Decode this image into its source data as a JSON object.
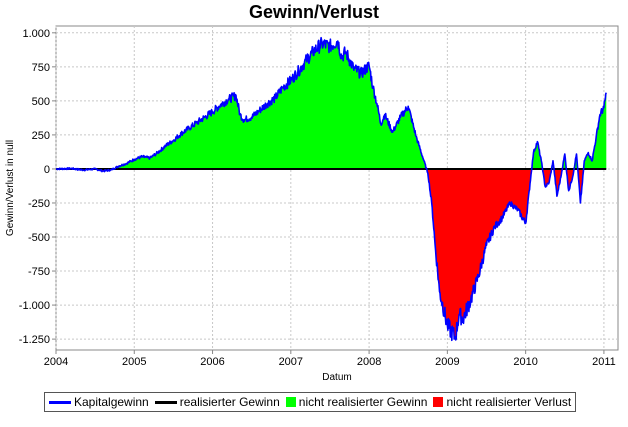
{
  "chart_data": {
    "type": "area",
    "title": "Gewinn/Verlust",
    "xlabel": "Datum",
    "ylabel": "Gewinn/Verlust in null",
    "xlim": [
      2004.0,
      2011.18
    ],
    "ylim": [
      -1330,
      1050
    ],
    "x_ticks": [
      2004,
      2005,
      2006,
      2007,
      2008,
      2009,
      2010,
      2011
    ],
    "x_tick_labels": [
      "2004",
      "2005",
      "2006",
      "2007",
      "2008",
      "2009",
      "2010",
      "2011"
    ],
    "y_ticks": [
      1000,
      750,
      500,
      250,
      0,
      -250,
      -500,
      -750,
      -1000,
      -1250
    ],
    "y_tick_labels": [
      "1.000",
      "750",
      "500",
      "250",
      "0",
      "-250",
      "-500",
      "-750",
      "-1.000",
      "-1.250"
    ],
    "grid": true,
    "legend_position": "bottom-left",
    "series": [
      {
        "name": "Kapitalgewinn",
        "color": "#0000ff",
        "x": [
          2004.0,
          2004.2,
          2004.35,
          2004.5,
          2004.6,
          2004.7,
          2004.8,
          2004.9,
          2005.0,
          2005.1,
          2005.2,
          2005.3,
          2005.4,
          2005.5,
          2005.6,
          2005.7,
          2005.8,
          2005.9,
          2006.0,
          2006.1,
          2006.2,
          2006.3,
          2006.35,
          2006.4,
          2006.5,
          2006.6,
          2006.7,
          2006.8,
          2006.9,
          2007.0,
          2007.1,
          2007.2,
          2007.3,
          2007.4,
          2007.5,
          2007.6,
          2007.65,
          2007.7,
          2007.8,
          2007.9,
          2008.0,
          2008.05,
          2008.1,
          2008.15,
          2008.2,
          2008.3,
          2008.4,
          2008.5,
          2008.6,
          2008.7,
          2008.75,
          2008.8,
          2008.85,
          2008.9,
          2009.0,
          2009.1,
          2009.15,
          2009.2,
          2009.3,
          2009.4,
          2009.5,
          2009.6,
          2009.7,
          2009.8,
          2009.9,
          2010.0,
          2010.1,
          2010.15,
          2010.2,
          2010.25,
          2010.3,
          2010.35,
          2010.4,
          2010.45,
          2010.5,
          2010.55,
          2010.6,
          2010.65,
          2010.7,
          2010.75,
          2010.8,
          2010.85,
          2010.9,
          2010.95,
          2011.0,
          2011.03
        ],
        "y": [
          0,
          3,
          -8,
          0,
          -15,
          -8,
          20,
          40,
          70,
          90,
          80,
          120,
          170,
          210,
          260,
          300,
          340,
          380,
          420,
          470,
          510,
          540,
          400,
          360,
          380,
          430,
          480,
          520,
          600,
          650,
          720,
          800,
          870,
          920,
          900,
          940,
          820,
          860,
          740,
          700,
          760,
          600,
          480,
          330,
          400,
          270,
          380,
          460,
          240,
          60,
          -30,
          -250,
          -600,
          -900,
          -1150,
          -1240,
          -1070,
          -1100,
          -960,
          -780,
          -560,
          -430,
          -360,
          -250,
          -300,
          -400,
          120,
          200,
          60,
          -130,
          -100,
          60,
          -200,
          -60,
          110,
          -160,
          -60,
          110,
          -250,
          60,
          120,
          60,
          230,
          400,
          450,
          560
        ]
      },
      {
        "name": "realisierter Gewinn",
        "color": "#000000",
        "x": [
          2004.0,
          2011.03
        ],
        "y": [
          0,
          0
        ]
      },
      {
        "name": "nicht realisierter Gewinn",
        "color": "#00ff00"
      },
      {
        "name": "nicht realisierter Verlust",
        "color": "#ff0000"
      }
    ]
  }
}
